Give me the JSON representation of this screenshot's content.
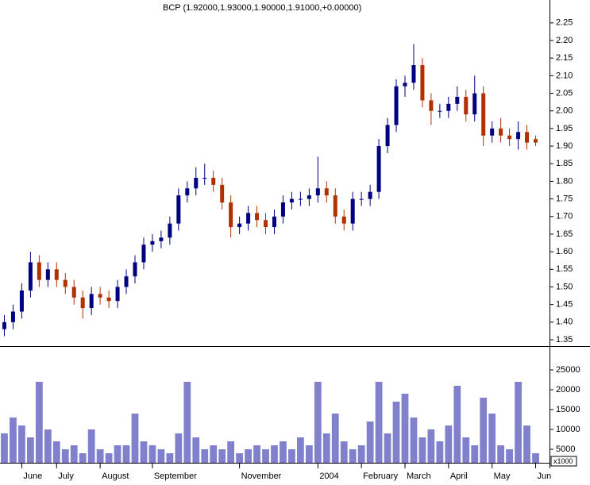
{
  "chart_data": [
    {
      "type": "candlestick",
      "title": "BCP (1.92000,1.93000,1.90000,1.91000,+0.00000)",
      "categories": [
        null,
        null,
        "June",
        null,
        null,
        null,
        "July",
        null,
        null,
        null,
        null,
        "August",
        null,
        null,
        null,
        null,
        null,
        "September",
        null,
        null,
        null,
        null,
        null,
        null,
        null,
        null,
        null,
        "November",
        null,
        null,
        null,
        null,
        null,
        null,
        null,
        null,
        "2004",
        null,
        null,
        null,
        null,
        "February",
        null,
        null,
        null,
        null,
        "March",
        null,
        null,
        null,
        null,
        "April",
        null,
        null,
        null,
        null,
        "May",
        null,
        null,
        null,
        null,
        "Jun"
      ],
      "series": [
        {
          "up_color": "#000080",
          "down_color": "#b03000",
          "open": [
            1.38,
            1.4,
            1.43,
            1.49,
            1.57,
            1.52,
            1.55,
            1.52,
            1.5,
            1.47,
            1.44,
            1.48,
            1.47,
            1.46,
            1.5,
            1.53,
            1.57,
            1.62,
            1.63,
            1.64,
            1.68,
            1.76,
            1.78,
            1.81,
            1.81,
            1.79,
            1.74,
            1.67,
            1.68,
            1.71,
            1.69,
            1.67,
            1.7,
            1.74,
            1.75,
            1.75,
            1.76,
            1.78,
            1.76,
            1.7,
            1.68,
            1.75,
            1.75,
            1.77,
            1.9,
            1.96,
            2.07,
            2.08,
            2.13,
            2.03,
            2.0,
            2.0,
            2.02,
            2.04,
            1.99,
            2.05,
            1.93,
            1.95,
            1.93,
            1.92,
            1.94,
            1.92
          ],
          "high": [
            1.42,
            1.45,
            1.51,
            1.6,
            1.59,
            1.57,
            1.57,
            1.54,
            1.52,
            1.49,
            1.5,
            1.5,
            1.49,
            1.52,
            1.55,
            1.59,
            1.64,
            1.65,
            1.66,
            1.7,
            1.78,
            1.8,
            1.84,
            1.85,
            1.83,
            1.81,
            1.76,
            1.7,
            1.73,
            1.73,
            1.71,
            1.72,
            1.76,
            1.77,
            1.77,
            1.78,
            1.87,
            1.8,
            1.78,
            1.72,
            1.77,
            1.77,
            1.79,
            1.92,
            1.98,
            2.09,
            2.1,
            2.19,
            2.15,
            2.05,
            2.02,
            2.04,
            2.07,
            2.06,
            2.1,
            2.07,
            1.97,
            1.98,
            1.95,
            1.97,
            1.96,
            1.93
          ],
          "low": [
            1.36,
            1.38,
            1.41,
            1.47,
            1.5,
            1.5,
            1.5,
            1.48,
            1.45,
            1.41,
            1.42,
            1.45,
            1.44,
            1.44,
            1.48,
            1.51,
            1.55,
            1.6,
            1.61,
            1.62,
            1.66,
            1.74,
            1.76,
            1.79,
            1.77,
            1.72,
            1.64,
            1.65,
            1.66,
            1.67,
            1.65,
            1.65,
            1.68,
            1.72,
            1.73,
            1.73,
            1.74,
            1.74,
            1.68,
            1.66,
            1.66,
            1.73,
            1.73,
            1.75,
            1.88,
            1.94,
            2.04,
            2.06,
            2.01,
            1.96,
            1.98,
            1.98,
            2.0,
            1.97,
            1.97,
            1.9,
            1.91,
            1.91,
            1.9,
            1.89,
            1.89,
            1.9
          ],
          "close": [
            1.4,
            1.43,
            1.49,
            1.57,
            1.52,
            1.55,
            1.52,
            1.5,
            1.47,
            1.44,
            1.48,
            1.47,
            1.46,
            1.5,
            1.53,
            1.57,
            1.62,
            1.63,
            1.64,
            1.68,
            1.76,
            1.78,
            1.81,
            1.81,
            1.79,
            1.74,
            1.67,
            1.68,
            1.71,
            1.69,
            1.67,
            1.7,
            1.74,
            1.75,
            1.75,
            1.76,
            1.78,
            1.76,
            1.7,
            1.68,
            1.75,
            1.75,
            1.77,
            1.9,
            1.96,
            2.07,
            2.08,
            2.13,
            2.03,
            2.0,
            2.0,
            2.02,
            2.04,
            1.99,
            2.05,
            1.93,
            1.95,
            1.93,
            1.92,
            1.94,
            1.91,
            1.91
          ]
        }
      ],
      "ylim": [
        1.332,
        2.315
      ],
      "yticks": [
        1.35,
        {
          "value": 1.4,
          "label": "1.40"
        },
        1.45,
        {
          "value": 1.5,
          "label": "1.50"
        },
        1.55,
        {
          "value": 1.6,
          "label": "1.60"
        },
        1.65,
        {
          "value": 1.7,
          "label": "1.70"
        },
        1.75,
        {
          "value": 1.8,
          "label": "1.80"
        },
        1.85,
        {
          "value": 1.9,
          "label": "1.90"
        },
        1.95,
        {
          "value": 2.0,
          "label": "2.00"
        },
        2.05,
        {
          "value": 2.1,
          "label": "2.10"
        },
        2.15,
        {
          "value": 2.2,
          "label": "2.20"
        },
        2.25
      ],
      "grid": false
    },
    {
      "type": "bar",
      "color": "#8080cc",
      "values": [
        9000,
        13000,
        11000,
        8000,
        22000,
        10000,
        7000,
        5000,
        6000,
        4000,
        10000,
        5000,
        4000,
        6000,
        6000,
        14000,
        7000,
        6000,
        5000,
        4000,
        9000,
        22000,
        8000,
        5000,
        6000,
        5000,
        7000,
        4000,
        5000,
        6000,
        5000,
        6000,
        7000,
        5000,
        8000,
        6000,
        22000,
        9000,
        14000,
        7000,
        5000,
        6000,
        12000,
        22000,
        9000,
        17000,
        19000,
        13000,
        8000,
        10000,
        7000,
        11000,
        21000,
        8000,
        6000,
        18000,
        14000,
        6000,
        5000,
        22000,
        11000,
        4000
      ],
      "ylim": [
        1600,
        30800
      ],
      "yticks": [
        5000,
        10000,
        15000,
        20000,
        25000
      ],
      "multiplier_label": "x1000",
      "grid": false
    }
  ]
}
